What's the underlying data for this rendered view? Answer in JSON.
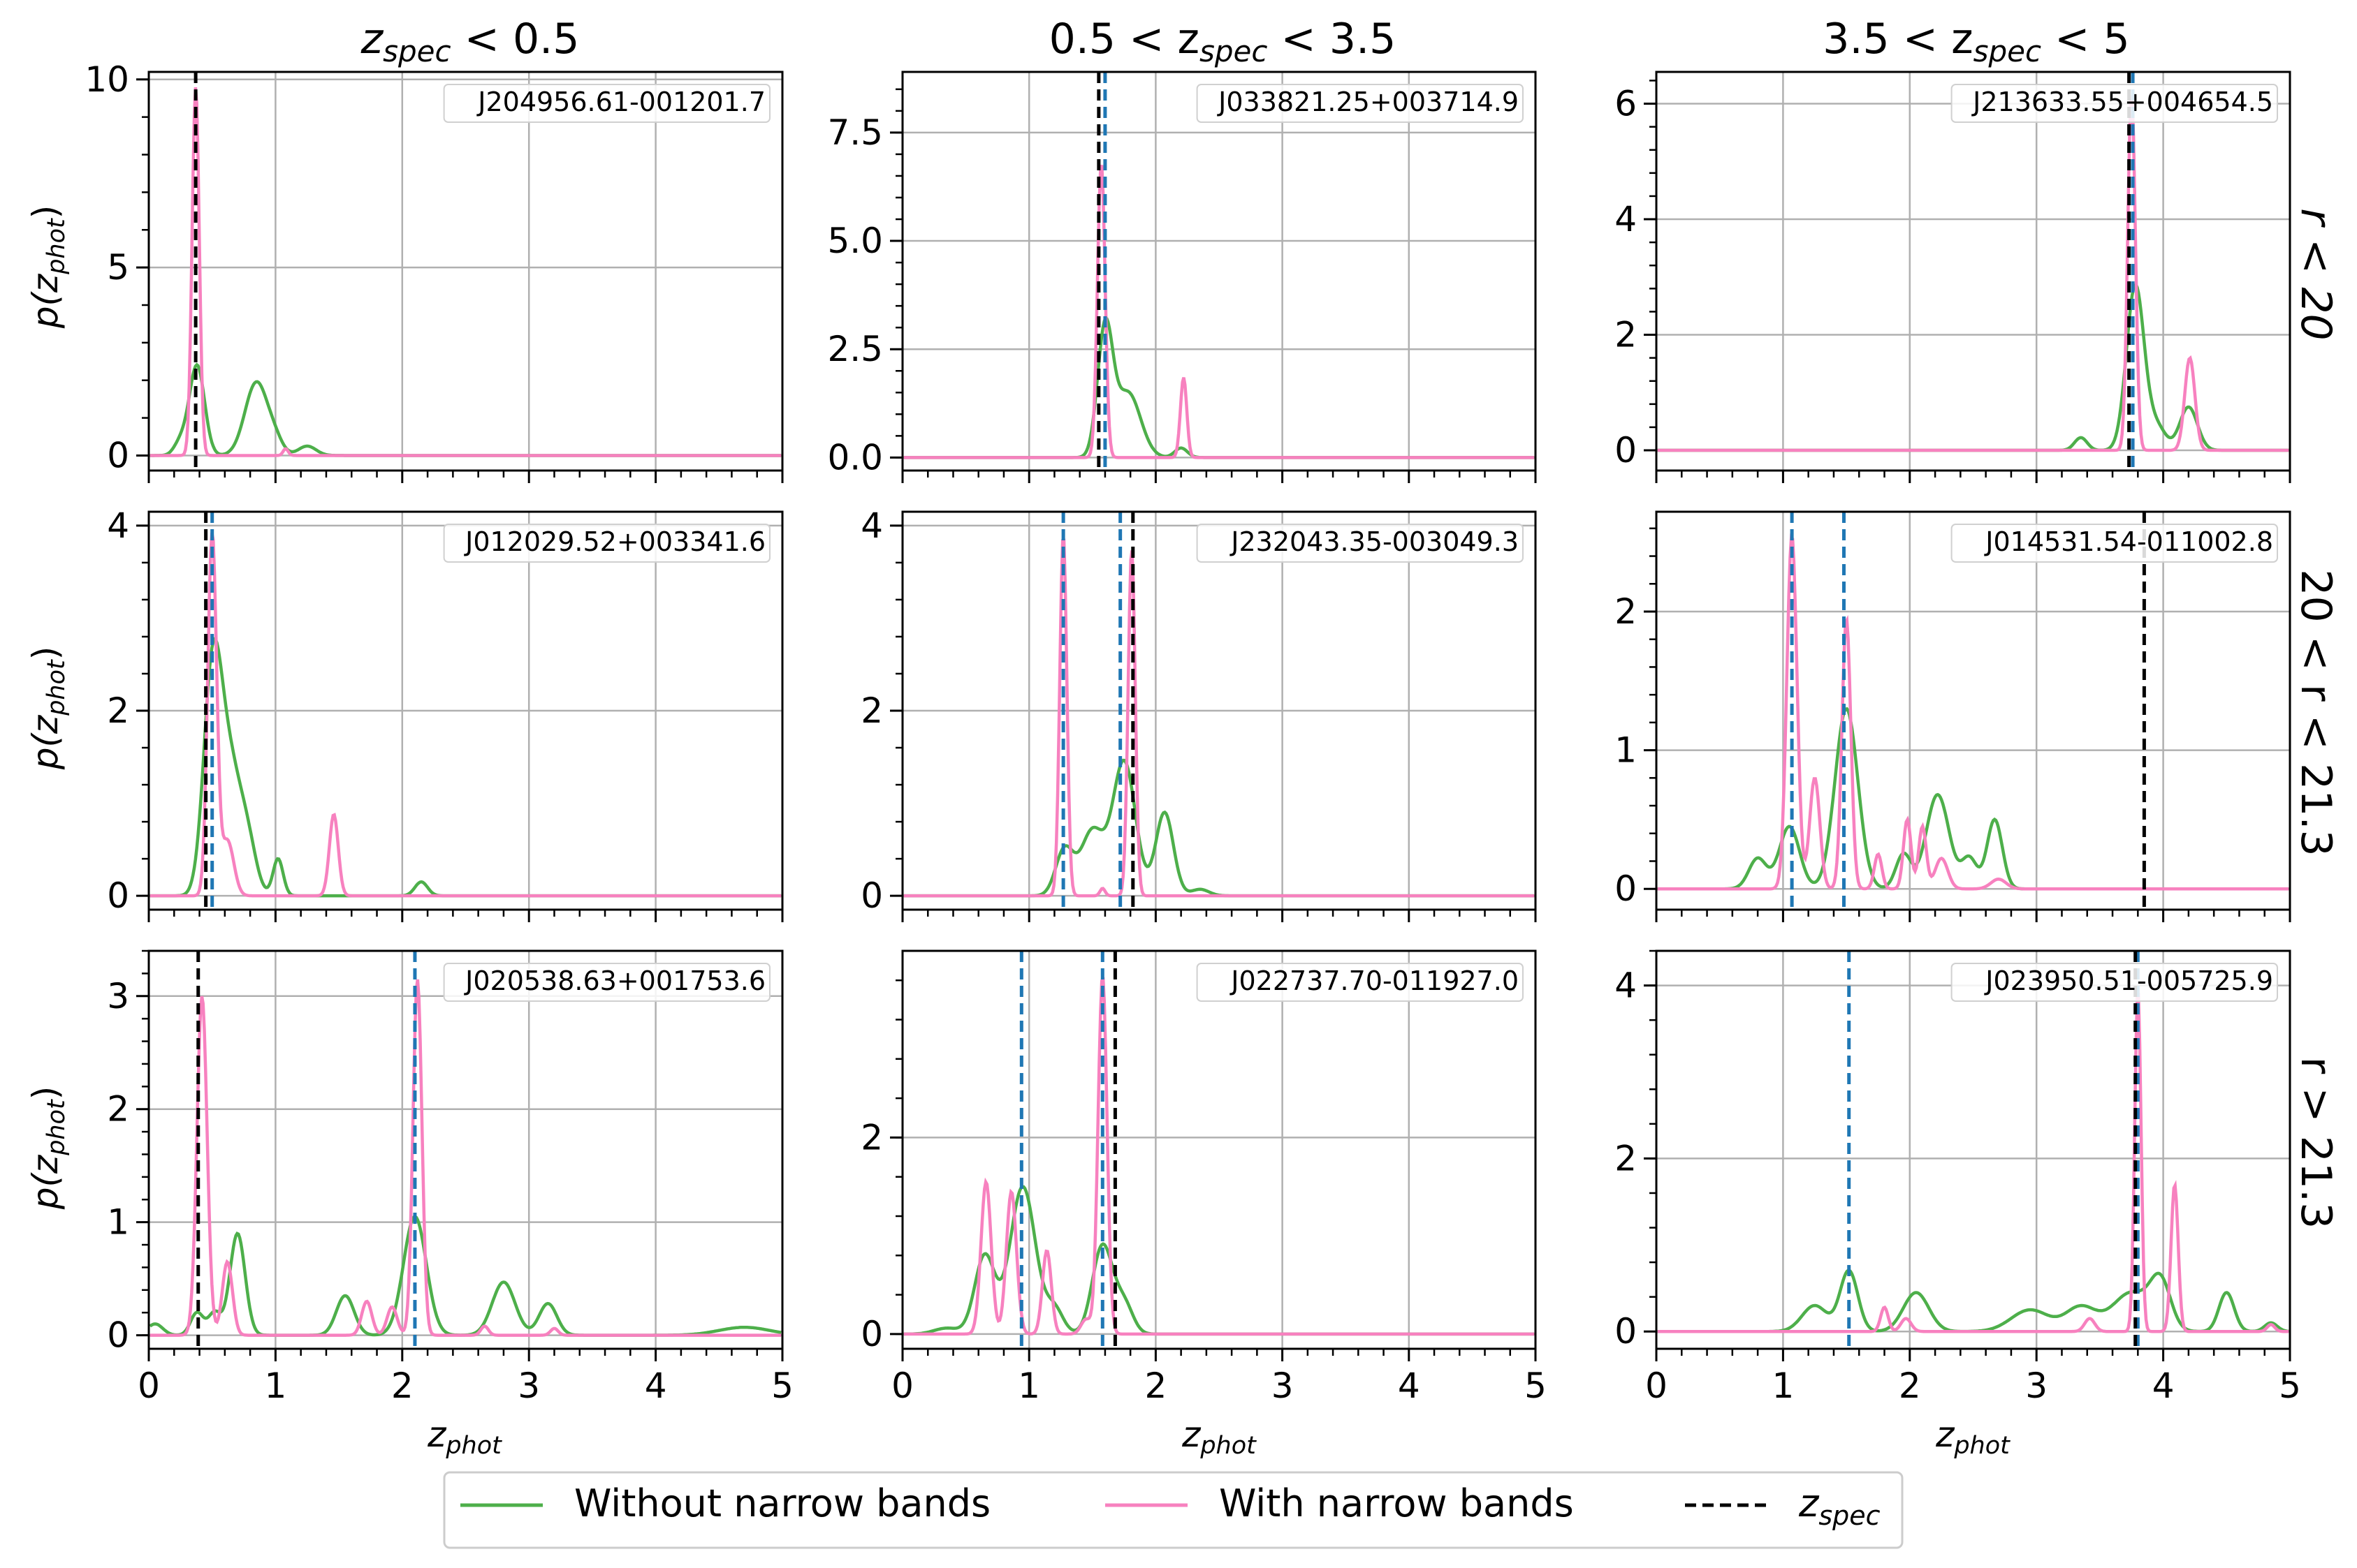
{
  "figure": {
    "column_titles": [
      {
        "pre": "z",
        "sub": "spec",
        "post": " < 0.5"
      },
      {
        "pre": "0.5 < z",
        "sub": "spec",
        "post": " < 3.5"
      },
      {
        "pre": "3.5 < z",
        "sub": "spec",
        "post": " < 5"
      }
    ],
    "row_titles": [
      "r < 20",
      "20 < r < 21.3",
      "r > 21.3"
    ],
    "x_label": {
      "main": "z",
      "sub": "phot"
    },
    "y_label": {
      "pre": "p(z",
      "sub": "phot",
      "post": ")"
    },
    "x_ticks": [
      "0",
      "1",
      "2",
      "3",
      "4",
      "5"
    ],
    "legend": {
      "items": [
        {
          "label": "Without narrow bands",
          "color": "#4daf4a",
          "style": "solid"
        },
        {
          "label": "With narrow bands",
          "color": "#f781bf",
          "style": "solid"
        },
        {
          "label": "z",
          "sub": "spec",
          "color": "#000000",
          "style": "dashed"
        }
      ]
    },
    "colors": {
      "without": "#4daf4a",
      "with": "#f781bf",
      "zspec": "#000000",
      "peak": "#1f77b4",
      "grid": "#b0b0b0"
    }
  },
  "chart_data": [
    {
      "type": "line",
      "id": "J204956.61-001201.7",
      "xlim": [
        0,
        5
      ],
      "ylim": [
        -0.4,
        10.2
      ],
      "yticks": [
        0,
        5,
        10
      ],
      "yticklabels": [
        "0",
        "5",
        "10"
      ],
      "z_spec": 0.37,
      "peak_markers": [],
      "without": [
        [
          0.25,
          0.35,
          0.05
        ],
        [
          0.38,
          2.4,
          0.06
        ],
        [
          0.85,
          1.95,
          0.09
        ],
        [
          1.0,
          0.3,
          0.06
        ],
        [
          1.25,
          0.25,
          0.07
        ]
      ],
      "with": [
        [
          0.37,
          9.8,
          0.028
        ],
        [
          1.08,
          0.18,
          0.02
        ]
      ]
    },
    {
      "type": "line",
      "id": "J033821.25+003714.9",
      "xlim": [
        0,
        5
      ],
      "ylim": [
        -0.3,
        8.9
      ],
      "yticks": [
        0,
        2.5,
        5,
        7.5
      ],
      "yticklabels": [
        "0.0",
        "2.5",
        "5.0",
        "7.5"
      ],
      "z_spec": 1.55,
      "peak_markers": [
        1.6
      ],
      "without": [
        [
          1.6,
          2.9,
          0.06
        ],
        [
          1.78,
          1.5,
          0.1
        ],
        [
          2.2,
          0.22,
          0.05
        ]
      ],
      "with": [
        [
          1.57,
          6.8,
          0.03
        ],
        [
          2.22,
          1.85,
          0.025
        ]
      ]
    },
    {
      "type": "line",
      "id": "J213633.55+004654.5",
      "xlim": [
        0,
        5
      ],
      "ylim": [
        -0.35,
        6.55
      ],
      "yticks": [
        0,
        2,
        4,
        6
      ],
      "yticklabels": [
        "0",
        "2",
        "4",
        "6"
      ],
      "z_spec": 3.73,
      "peak_markers": [
        3.76
      ],
      "without": [
        [
          3.35,
          0.22,
          0.05
        ],
        [
          3.78,
          2.85,
          0.07
        ],
        [
          3.95,
          0.4,
          0.07
        ],
        [
          4.2,
          0.75,
          0.07
        ]
      ],
      "with": [
        [
          3.75,
          6.2,
          0.03
        ],
        [
          4.21,
          1.6,
          0.04
        ]
      ]
    },
    {
      "type": "line",
      "id": "J012029.52+003341.6",
      "xlim": [
        0,
        5
      ],
      "ylim": [
        -0.15,
        4.15
      ],
      "yticks": [
        0,
        2,
        4
      ],
      "yticklabels": [
        "0",
        "2",
        "4"
      ],
      "z_spec": 0.45,
      "peak_markers": [
        0.5
      ],
      "without": [
        [
          0.5,
          2.2,
          0.07
        ],
        [
          0.63,
          1.4,
          0.09
        ],
        [
          0.78,
          0.5,
          0.07
        ],
        [
          1.02,
          0.4,
          0.04
        ],
        [
          2.15,
          0.15,
          0.05
        ]
      ],
      "with": [
        [
          0.5,
          3.9,
          0.035
        ],
        [
          0.62,
          0.6,
          0.05
        ],
        [
          1.46,
          0.88,
          0.035
        ]
      ]
    },
    {
      "type": "line",
      "id": "J232043.35-003049.3",
      "xlim": [
        0,
        5
      ],
      "ylim": [
        -0.15,
        4.15
      ],
      "yticks": [
        0,
        2,
        4
      ],
      "yticklabels": [
        "0",
        "2",
        "4"
      ],
      "z_spec": 1.82,
      "peak_markers": [
        1.27,
        1.72
      ],
      "without": [
        [
          1.28,
          0.5,
          0.07
        ],
        [
          1.5,
          0.7,
          0.09
        ],
        [
          1.75,
          1.45,
          0.09
        ],
        [
          2.07,
          0.9,
          0.07
        ],
        [
          2.35,
          0.07,
          0.07
        ]
      ],
      "with": [
        [
          1.27,
          3.9,
          0.028
        ],
        [
          1.81,
          3.75,
          0.028
        ],
        [
          1.58,
          0.08,
          0.02
        ]
      ]
    },
    {
      "type": "line",
      "id": "J014531.54-011002.8",
      "xlim": [
        0,
        5
      ],
      "ylim": [
        -0.15,
        2.72
      ],
      "yticks": [
        0,
        1,
        2
      ],
      "yticklabels": [
        "0",
        "1",
        "2"
      ],
      "z_spec": 3.85,
      "peak_markers": [
        1.07,
        1.48
      ],
      "without": [
        [
          0.8,
          0.22,
          0.07
        ],
        [
          1.05,
          0.45,
          0.08
        ],
        [
          1.5,
          1.3,
          0.09
        ],
        [
          1.95,
          0.25,
          0.06
        ],
        [
          2.22,
          0.68,
          0.09
        ],
        [
          2.47,
          0.22,
          0.06
        ],
        [
          2.67,
          0.5,
          0.06
        ]
      ],
      "with": [
        [
          1.07,
          2.55,
          0.04
        ],
        [
          1.25,
          0.8,
          0.04
        ],
        [
          1.5,
          1.95,
          0.035
        ],
        [
          1.75,
          0.25,
          0.03
        ],
        [
          1.98,
          0.5,
          0.03
        ],
        [
          2.1,
          0.45,
          0.03
        ],
        [
          2.25,
          0.22,
          0.05
        ],
        [
          2.7,
          0.07,
          0.06
        ]
      ]
    },
    {
      "type": "line",
      "id": "J020538.63+001753.6",
      "xlim": [
        0,
        5
      ],
      "ylim": [
        -0.12,
        3.4
      ],
      "yticks": [
        0,
        1,
        2,
        3
      ],
      "yticklabels": [
        "0",
        "1",
        "2",
        "3"
      ],
      "z_spec": 0.39,
      "peak_markers": [
        2.1
      ],
      "without": [
        [
          0.05,
          0.1,
          0.06
        ],
        [
          0.38,
          0.2,
          0.05
        ],
        [
          0.52,
          0.2,
          0.05
        ],
        [
          0.7,
          0.9,
          0.06
        ],
        [
          1.55,
          0.35,
          0.07
        ],
        [
          2.1,
          1.05,
          0.09
        ],
        [
          2.8,
          0.47,
          0.09
        ],
        [
          3.15,
          0.28,
          0.07
        ],
        [
          4.7,
          0.07,
          0.2
        ]
      ],
      "with": [
        [
          0.42,
          3.0,
          0.04
        ],
        [
          0.62,
          0.65,
          0.04
        ],
        [
          1.72,
          0.3,
          0.04
        ],
        [
          1.92,
          0.25,
          0.04
        ],
        [
          2.12,
          3.15,
          0.035
        ],
        [
          2.65,
          0.08,
          0.03
        ],
        [
          3.2,
          0.06,
          0.03
        ]
      ]
    },
    {
      "type": "line",
      "id": "J022737.70-011927.0",
      "xlim": [
        0,
        5
      ],
      "ylim": [
        -0.15,
        3.9
      ],
      "yticks": [
        0,
        2
      ],
      "yticklabels": [
        "0",
        "2"
      ],
      "z_spec": 1.68,
      "peak_markers": [
        0.94,
        1.58
      ],
      "without": [
        [
          0.65,
          0.8,
          0.08
        ],
        [
          0.95,
          1.5,
          0.1
        ],
        [
          1.2,
          0.25,
          0.07
        ],
        [
          1.58,
          0.9,
          0.08
        ],
        [
          1.75,
          0.3,
          0.07
        ],
        [
          0.35,
          0.06,
          0.1
        ]
      ],
      "with": [
        [
          0.66,
          1.55,
          0.04
        ],
        [
          0.86,
          1.45,
          0.04
        ],
        [
          1.14,
          0.85,
          0.035
        ],
        [
          1.58,
          3.65,
          0.035
        ],
        [
          1.45,
          0.15,
          0.04
        ]
      ]
    },
    {
      "type": "line",
      "id": "J023950.51-005725.9",
      "xlim": [
        0,
        5
      ],
      "ylim": [
        -0.2,
        4.4
      ],
      "yticks": [
        0,
        2,
        4
      ],
      "yticklabels": [
        "0",
        "2",
        "4"
      ],
      "z_spec": 3.78,
      "peak_markers": [
        1.52,
        3.8
      ],
      "without": [
        [
          1.25,
          0.3,
          0.1
        ],
        [
          1.52,
          0.7,
          0.07
        ],
        [
          2.05,
          0.45,
          0.1
        ],
        [
          2.95,
          0.25,
          0.15
        ],
        [
          3.35,
          0.28,
          0.12
        ],
        [
          3.75,
          0.45,
          0.15
        ],
        [
          3.98,
          0.52,
          0.08
        ],
        [
          4.5,
          0.45,
          0.06
        ],
        [
          4.85,
          0.1,
          0.05
        ]
      ],
      "with": [
        [
          1.8,
          0.28,
          0.03
        ],
        [
          1.97,
          0.15,
          0.04
        ],
        [
          3.42,
          0.15,
          0.04
        ],
        [
          3.8,
          3.95,
          0.025
        ],
        [
          4.09,
          1.7,
          0.028
        ],
        [
          4.85,
          0.08,
          0.03
        ]
      ]
    }
  ]
}
